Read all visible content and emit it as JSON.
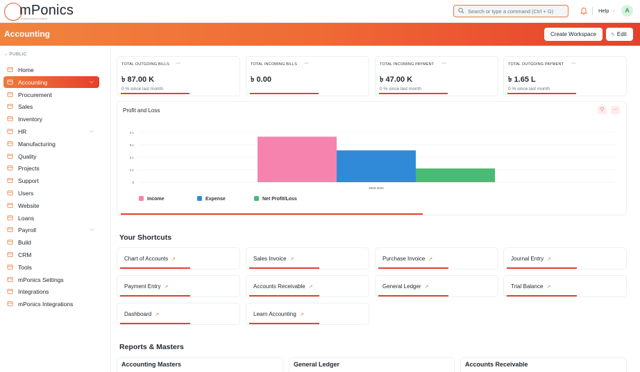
{
  "app": {
    "brand": "mPonics",
    "brand_tagline": "intelligent business solutions"
  },
  "topnav": {
    "search_placeholder": "Search or type a command (Ctrl + G)",
    "help_label": "Help",
    "avatar_initial": "A"
  },
  "header": {
    "title": "Accounting",
    "create_workspace_label": "Create Workspace",
    "edit_label": "Edit"
  },
  "sidebar": {
    "section_label": "PUBLIC",
    "items": [
      {
        "label": "Home",
        "icon": "home-icon"
      },
      {
        "label": "Accounting",
        "icon": "accounting-icon",
        "active": true,
        "expandable": true
      },
      {
        "label": "Procurement",
        "icon": "procurement-icon"
      },
      {
        "label": "Sales",
        "icon": "sales-icon"
      },
      {
        "label": "Inventory",
        "icon": "inventory-icon"
      },
      {
        "label": "HR",
        "icon": "hr-icon",
        "expandable": true
      },
      {
        "label": "Manufacturing",
        "icon": "manufacturing-icon"
      },
      {
        "label": "Quality",
        "icon": "quality-icon"
      },
      {
        "label": "Projects",
        "icon": "projects-icon"
      },
      {
        "label": "Support",
        "icon": "support-icon"
      },
      {
        "label": "Users",
        "icon": "users-icon"
      },
      {
        "label": "Website",
        "icon": "website-icon"
      },
      {
        "label": "Loans",
        "icon": "loans-icon"
      },
      {
        "label": "Payroll",
        "icon": "payroll-icon",
        "expandable": true
      },
      {
        "label": "Build",
        "icon": "build-icon"
      },
      {
        "label": "CRM",
        "icon": "crm-icon"
      },
      {
        "label": "Tools",
        "icon": "tools-icon"
      },
      {
        "label": "mPonics Settings",
        "icon": "settings-icon"
      },
      {
        "label": "Integrations",
        "icon": "integrations-icon"
      },
      {
        "label": "mPonics Integrations",
        "icon": "integrations-icon"
      }
    ]
  },
  "stats": [
    {
      "title": "TOTAL OUTGOING BILLS",
      "value": "৳ 87.00 K",
      "sub": "0 % since last month"
    },
    {
      "title": "TOTAL INCOMING BILLS",
      "value": "৳ 0.00",
      "sub": ""
    },
    {
      "title": "TOTAL INCOMING PAYMENT",
      "value": "৳ 47.00 K",
      "sub": "0 % since last month"
    },
    {
      "title": "TOTAL OUTGOING PAYMENT",
      "value": "৳ 1.65 L",
      "sub": "0 % since last month"
    }
  ],
  "profit_loss": {
    "title": "Profit and Loss",
    "ellipsis": "···"
  },
  "chart_data": {
    "type": "bar",
    "categories": [
      "2023-2024"
    ],
    "series": [
      {
        "name": "Income",
        "values": [
          3.65
        ],
        "color": "#f683ae"
      },
      {
        "name": "Expense",
        "values": [
          2.55
        ],
        "color": "#318ad8"
      },
      {
        "name": "Net Profit/Loss",
        "values": [
          1.1
        ],
        "color": "#48bb74"
      }
    ],
    "yticks": [
      "4 L",
      "3 L",
      "2 L",
      "1 L",
      "0"
    ],
    "ylim": [
      0,
      4
    ],
    "legend": "bottom-left",
    "grid": true
  },
  "shortcuts": {
    "heading": "Your Shortcuts",
    "items": [
      "Chart of Accounts",
      "Sales Invoice",
      "Purchase Invoice",
      "Journal Entry",
      "Payment Entry",
      "Accounts Receivable",
      "General Ledger",
      "Trial Balance",
      "Dashboard",
      "Learn Accounting"
    ],
    "arrow": "↗"
  },
  "reports": {
    "heading": "Reports & Masters",
    "cards": [
      "Accounting Masters",
      "General Ledger",
      "Accounts Receivable"
    ]
  },
  "colors": {
    "accent": "#e6402c",
    "accent_light": "#ef7a3a"
  }
}
